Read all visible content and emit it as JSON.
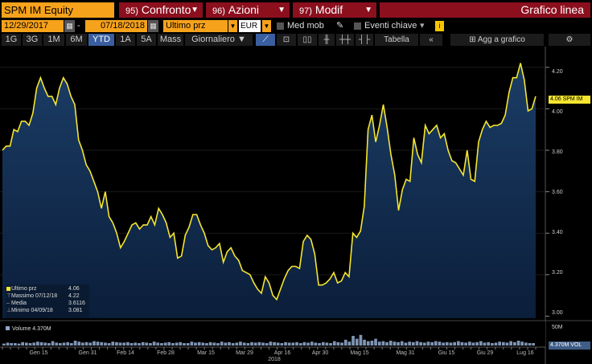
{
  "toolbar": {
    "ticker": "SPM IM Equity",
    "tabs": [
      {
        "num": "95)",
        "label": "Confronto"
      },
      {
        "num": "96)",
        "label": "Azioni"
      },
      {
        "num": "97)",
        "label": "Modif"
      }
    ],
    "title": "Grafico linea"
  },
  "controls": {
    "start_date": "12/29/2017",
    "end_date": "07/18/2018",
    "field": "Ultimo prz",
    "currency": "EUR",
    "med_mob": "Med mob",
    "eventi": "Eventi chiave",
    "info": "i"
  },
  "periods": [
    "1G",
    "3G",
    "1M",
    "6M",
    "YTD",
    "1A",
    "5A",
    "Mass"
  ],
  "active_period": "YTD",
  "frequency": "Giornaliero",
  "tabella": "Tabella",
  "agg_grafico": "Agg a grafico",
  "legend": {
    "ultimo_label": "Ultimo prz",
    "ultimo_value": "4.06",
    "massimo_label": "Massimo 07/12/18",
    "massimo_value": "4.22",
    "media_label": "Media",
    "media_value": "3.6116",
    "minimo_label": "Minimo 04/09/18",
    "minimo_value": "3.081",
    "volume_label": "Volume 4.370M"
  },
  "colors": {
    "line": "#f5e52f",
    "accent": "#f7a21b",
    "tab_red": "#8c0f1e"
  },
  "chart_data": {
    "type": "line",
    "series": [
      {
        "name": "Ultimo prz",
        "values": [
          3.8,
          3.82,
          3.82,
          3.9,
          3.89,
          3.94,
          3.94,
          3.92,
          3.98,
          4.1,
          4.15,
          4.1,
          4.06,
          4.06,
          4.02,
          4.1,
          4.15,
          4.12,
          4.06,
          4.02,
          3.85,
          3.8,
          3.73,
          3.7,
          3.65,
          3.6,
          3.52,
          3.6,
          3.48,
          3.45,
          3.4,
          3.33,
          3.36,
          3.4,
          3.44,
          3.45,
          3.42,
          3.44,
          3.44,
          3.48,
          3.44,
          3.52,
          3.49,
          3.45,
          3.38,
          3.4,
          3.28,
          3.29,
          3.39,
          3.43,
          3.49,
          3.49,
          3.44,
          3.4,
          3.34,
          3.32,
          3.33,
          3.35,
          3.26,
          3.31,
          3.33,
          3.29,
          3.27,
          3.22,
          3.21,
          3.2,
          3.16,
          3.13,
          3.11,
          3.19,
          3.16,
          3.1,
          3.08,
          3.13,
          3.18,
          3.22,
          3.24,
          3.24,
          3.23,
          3.36,
          3.39,
          3.37,
          3.3,
          3.15,
          3.15,
          3.16,
          3.18,
          3.21,
          3.16,
          3.17,
          3.21,
          3.19,
          3.4,
          3.38,
          3.41,
          3.53,
          3.9,
          3.97,
          3.84,
          3.92,
          4.02,
          3.91,
          3.78,
          3.68,
          3.51,
          3.61,
          3.66,
          3.65,
          3.86,
          3.78,
          3.74,
          3.92,
          3.88,
          3.9,
          3.92,
          3.86,
          3.88,
          3.8,
          3.75,
          3.74,
          3.71,
          3.68,
          3.8,
          3.66,
          3.65,
          3.84,
          3.9,
          3.94,
          3.91,
          3.92,
          3.92,
          3.93,
          3.97,
          4.08,
          4.15,
          4.15,
          4.22,
          4.14,
          3.99,
          4.0,
          4.06
        ]
      }
    ],
    "x_ticks": [
      "Gen 15",
      "Gen 31",
      "Feb 14",
      "Feb 28",
      "Mar 15",
      "Mar 29",
      "Apr 16",
      "Apr 30",
      "Mag 15",
      "Mag 31",
      "Giu 15",
      "Giu 29",
      "Lug 16"
    ],
    "year_label": "2018",
    "y_ticks": [
      "3.00",
      "3.20",
      "3.40",
      "3.60",
      "3.80",
      "4.00",
      "4.20"
    ],
    "ylim": [
      2.99,
      4.3
    ],
    "last_label": "4.06 SPM IM",
    "volume": {
      "label": "50M",
      "last": "4.370M VOL",
      "values": [
        4,
        6,
        5,
        5,
        4,
        7,
        6,
        5,
        6,
        8,
        7,
        6,
        5,
        9,
        6,
        5,
        6,
        7,
        5,
        10,
        8,
        6,
        7,
        6,
        9,
        8,
        7,
        6,
        5,
        8,
        7,
        6,
        6,
        7,
        5,
        6,
        5,
        7,
        6,
        5,
        8,
        6,
        5,
        6,
        7,
        5,
        6,
        7,
        5,
        5,
        8,
        6,
        7,
        6,
        5,
        7,
        6,
        5,
        8,
        6,
        7,
        5,
        6,
        8,
        6,
        5,
        7,
        6,
        7,
        6,
        5,
        8,
        7,
        6,
        5,
        7,
        6,
        6,
        7,
        5,
        7,
        6,
        8,
        6,
        5,
        7,
        6,
        5,
        9,
        7,
        6,
        12,
        8,
        20,
        14,
        22,
        12,
        9,
        10,
        14,
        8,
        9,
        7,
        10,
        8,
        7,
        9,
        6,
        8,
        7,
        9,
        7,
        6,
        8,
        7,
        9,
        8,
        6,
        7,
        6,
        7,
        9,
        7,
        6,
        8,
        6,
        7,
        9,
        6,
        7,
        5,
        6,
        8,
        7,
        6,
        9,
        7,
        10,
        8,
        6,
        5,
        5
      ]
    }
  }
}
